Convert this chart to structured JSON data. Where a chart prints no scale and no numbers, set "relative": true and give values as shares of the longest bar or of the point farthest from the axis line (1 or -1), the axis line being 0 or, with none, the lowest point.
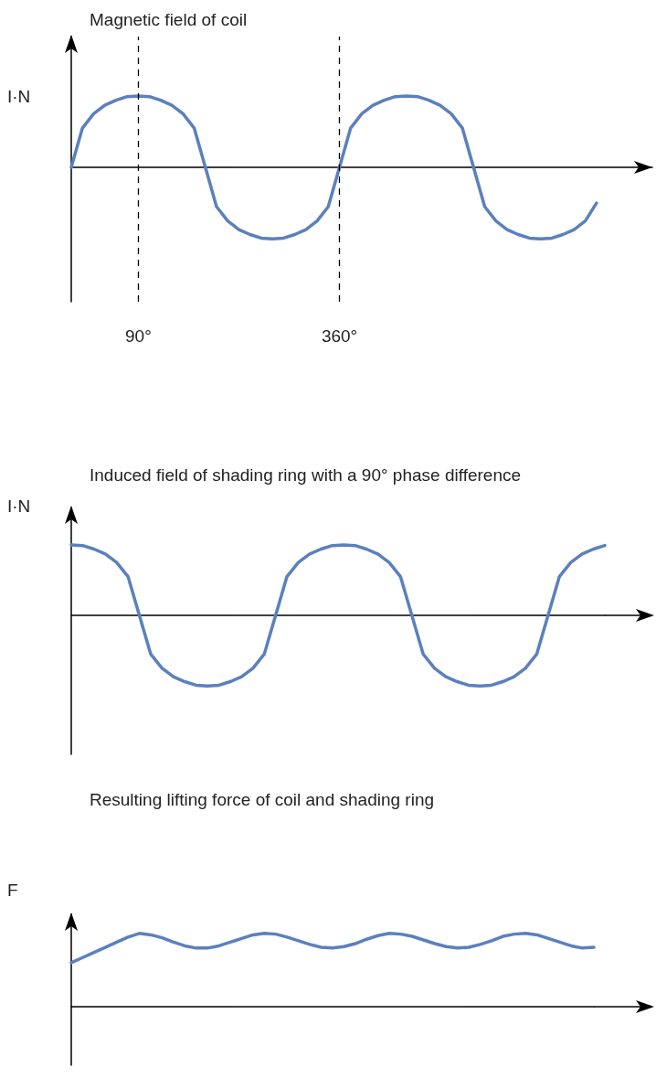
{
  "chart_data": [
    {
      "type": "line",
      "title": "Magnetic field of coil",
      "ylabel": "I·N",
      "relative": true,
      "marker": "none",
      "tick_labels": "x",
      "xlim": [
        0,
        780
      ],
      "xticks": [
        {
          "value": 90,
          "label": "90°"
        },
        {
          "value": 360,
          "label": "360°"
        }
      ],
      "ref_lines": [
        {
          "axis": "x",
          "value": 90,
          "label": null,
          "color": "#000000",
          "line_style": "dashed"
        },
        {
          "axis": "x",
          "value": 360,
          "label": null,
          "color": "#000000",
          "line_style": "dashed"
        }
      ],
      "x": [
        0,
        15,
        30,
        45,
        60,
        75,
        90,
        105,
        120,
        135,
        150,
        165,
        180,
        195,
        210,
        225,
        240,
        255,
        270,
        285,
        300,
        315,
        330,
        345,
        360,
        375,
        390,
        405,
        420,
        435,
        450,
        465,
        480,
        495,
        510,
        525,
        540,
        555,
        570,
        585,
        600,
        615,
        630,
        645,
        660,
        675,
        690,
        705
      ],
      "series": [
        {
          "color": "#5b80bd",
          "values": [
            0,
            0.55,
            0.75,
            0.87,
            0.94,
            0.99,
            1,
            0.99,
            0.94,
            0.87,
            0.75,
            0.55,
            0,
            -0.55,
            -0.75,
            -0.87,
            -0.94,
            -0.99,
            -1,
            -0.99,
            -0.94,
            -0.87,
            -0.75,
            -0.55,
            0,
            0.55,
            0.75,
            0.87,
            0.94,
            0.99,
            1,
            0.99,
            0.94,
            0.87,
            0.75,
            0.55,
            0,
            -0.55,
            -0.75,
            -0.87,
            -0.94,
            -0.99,
            -1,
            -0.99,
            -0.94,
            -0.87,
            -0.75,
            -0.5
          ]
        }
      ]
    },
    {
      "type": "line",
      "title": "Induced field of shading ring with a 90° phase difference",
      "ylabel": "I·N",
      "relative": true,
      "marker": "none",
      "categories": [
        null,
        null,
        null,
        null,
        null,
        null,
        null,
        null,
        null,
        null,
        null,
        null,
        null,
        null,
        null,
        null,
        null,
        null,
        null,
        null,
        null,
        null,
        null,
        null,
        null,
        null,
        null,
        null,
        null,
        null,
        null,
        null,
        null,
        null,
        null,
        null,
        null,
        null,
        null,
        null,
        null,
        null,
        null,
        null,
        null,
        null,
        null,
        null
      ],
      "series": [
        {
          "color": "#5b80bd",
          "values": [
            1,
            0.99,
            0.94,
            0.87,
            0.75,
            0.55,
            0,
            -0.55,
            -0.75,
            -0.87,
            -0.94,
            -0.99,
            -1,
            -0.99,
            -0.94,
            -0.87,
            -0.75,
            -0.55,
            0,
            0.55,
            0.75,
            0.87,
            0.94,
            0.99,
            1,
            0.99,
            0.94,
            0.87,
            0.75,
            0.55,
            0,
            -0.55,
            -0.75,
            -0.87,
            -0.94,
            -0.99,
            -1,
            -0.99,
            -0.94,
            -0.87,
            -0.75,
            -0.55,
            0,
            0.55,
            0.75,
            0.87,
            0.94,
            0.99
          ]
        }
      ]
    },
    {
      "type": "line",
      "title": "Resulting lifting force of coil and shading ring",
      "ylabel": "F",
      "relative": true,
      "marker": "none",
      "categories": [
        null,
        null,
        null,
        null,
        null,
        null,
        null,
        null,
        null,
        null,
        null,
        null,
        null,
        null,
        null,
        null,
        null,
        null,
        null,
        null,
        null,
        null,
        null,
        null,
        null,
        null,
        null,
        null,
        null,
        null,
        null,
        null,
        null,
        null,
        null,
        null,
        null,
        null,
        null,
        null,
        null,
        null,
        null,
        null,
        null,
        null,
        null
      ],
      "series": [
        {
          "color": "#5b80bd",
          "values": [
            0.6,
            0.67,
            0.74,
            0.81,
            0.88,
            0.95,
            1,
            0.98,
            0.94,
            0.88,
            0.83,
            0.8,
            0.8,
            0.83,
            0.88,
            0.93,
            0.98,
            1,
            0.99,
            0.95,
            0.9,
            0.85,
            0.81,
            0.8,
            0.82,
            0.86,
            0.92,
            0.97,
            1,
            0.99,
            0.96,
            0.91,
            0.86,
            0.82,
            0.8,
            0.81,
            0.85,
            0.9,
            0.96,
            0.99,
            1,
            0.98,
            0.93,
            0.88,
            0.83,
            0.8,
            0.81
          ]
        }
      ]
    }
  ]
}
